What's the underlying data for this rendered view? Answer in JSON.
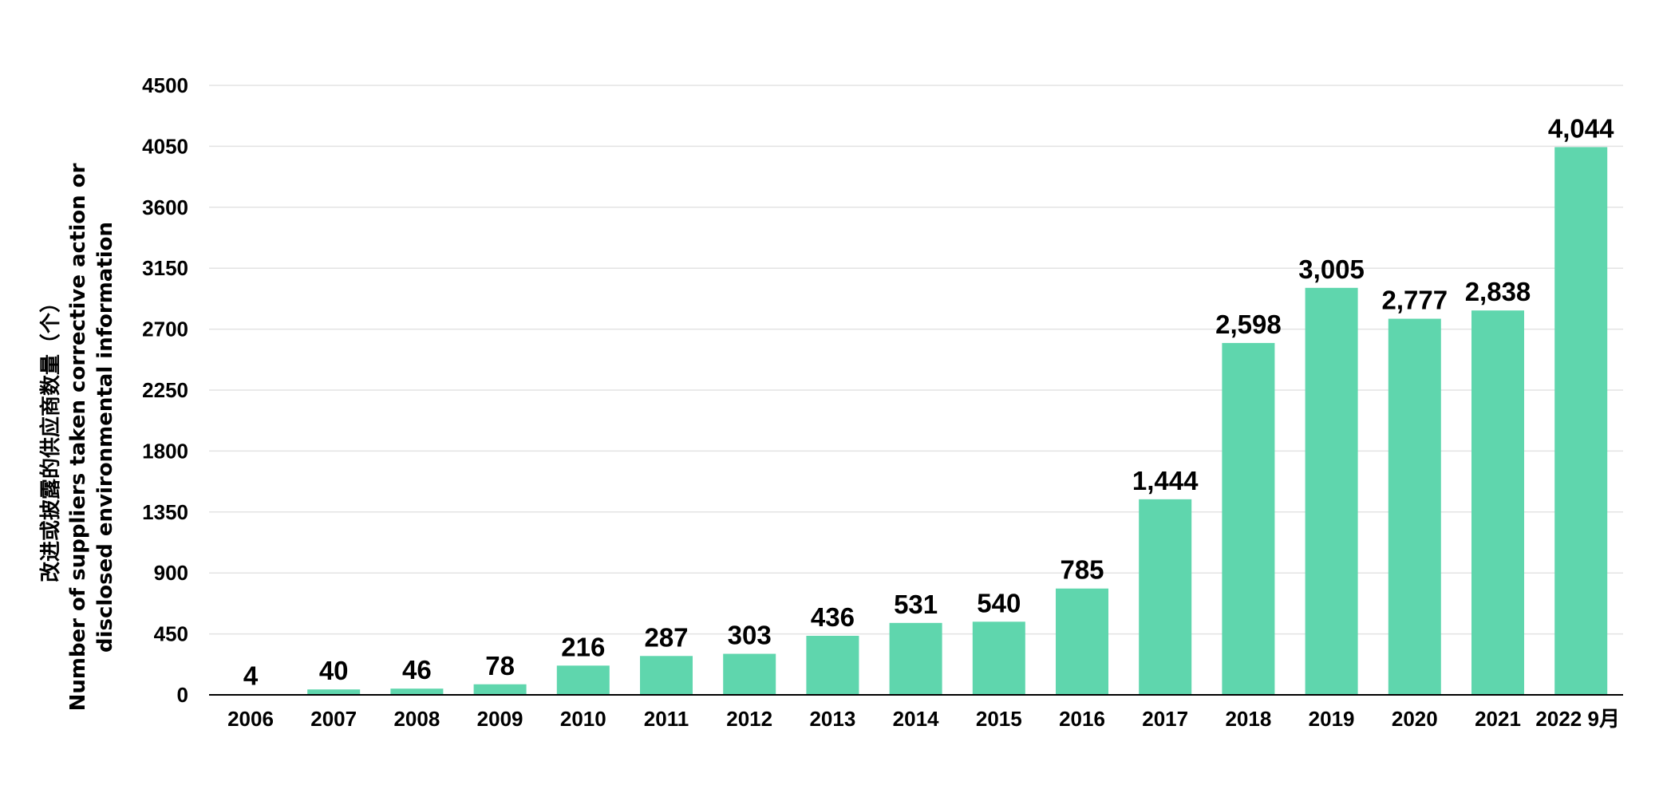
{
  "chart_data": {
    "type": "bar",
    "title": "",
    "ylabel_lines": [
      "改进或披露的供应商数量（个）",
      "Number of suppliers taken corrective action or",
      "disclosed environmental information"
    ],
    "xlabel": "",
    "categories": [
      "2006",
      "2007",
      "2008",
      "2009",
      "2010",
      "2011",
      "2012",
      "2013",
      "2014",
      "2015",
      "2016",
      "2017",
      "2018",
      "2019",
      "2020",
      "2021",
      "2022 9月"
    ],
    "values": [
      4,
      40,
      46,
      78,
      216,
      287,
      303,
      436,
      531,
      540,
      785,
      1444,
      2598,
      3005,
      2777,
      2838,
      4044
    ],
    "value_labels": [
      "4",
      "40",
      "46",
      "78",
      "216",
      "287",
      "303",
      "436",
      "531",
      "540",
      "785",
      "1,444",
      "2,598",
      "3,005",
      "2,777",
      "2,838",
      "4,044"
    ],
    "y_ticks": [
      0,
      450,
      900,
      1350,
      1800,
      2250,
      2700,
      3150,
      3600,
      4050,
      4500
    ],
    "ylim": [
      0,
      4500
    ],
    "grid": true,
    "legend": "none",
    "bar_color": "#5fd6ad"
  }
}
